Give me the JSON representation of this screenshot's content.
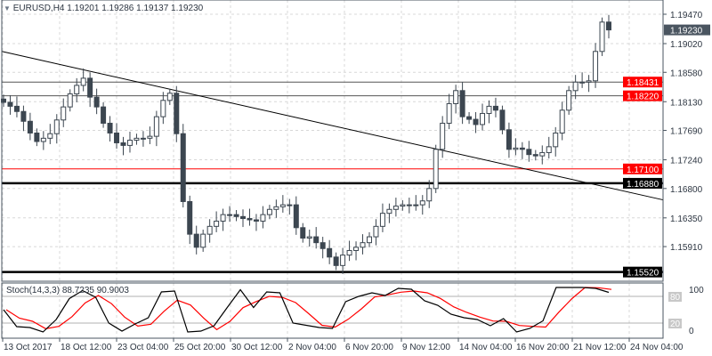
{
  "header": {
    "arrow_icon": "triangle-down-icon",
    "symbol": "EURUSD,H4",
    "ohlc": "1.19201 1.19286 1.19137 1.19230"
  },
  "indicator": {
    "label": "Stoch(14,3,3) 88.7235 90.9003",
    "levels": [
      "100",
      "80",
      "20",
      "0"
    ]
  },
  "chart_data": {
    "type": "candlestick",
    "title": "EURUSD,H4",
    "price_ticks": [
      "1.19470",
      "1.19020",
      "1.18580",
      "1.18130",
      "1.17690",
      "1.17240",
      "1.16800",
      "1.16350",
      "1.15910"
    ],
    "x_ticks": [
      "13 Oct 2017",
      "18 Oct 12:00",
      "23 Oct 04:00",
      "25 Oct 20:00",
      "30 Oct 12:00",
      "2 Nov 04:00",
      "6 Nov 20:00",
      "9 Nov 12:00",
      "14 Nov 04:00",
      "16 Nov 20:00",
      "21 Nov 12:00",
      "24 Nov 04:00"
    ],
    "ylim": [
      1.154,
      1.1965
    ],
    "current_price": "1.19230",
    "close": [
      1.1812,
      1.1806,
      1.1798,
      1.1783,
      1.1765,
      1.1752,
      1.1757,
      1.1764,
      1.1785,
      1.1805,
      1.1825,
      1.1838,
      1.1849,
      1.182,
      1.1805,
      1.178,
      1.1765,
      1.175,
      1.1746,
      1.1754,
      1.1757,
      1.1757,
      1.176,
      1.179,
      1.1815,
      1.1826,
      1.1764,
      1.166,
      1.161,
      1.159,
      1.161,
      1.1622,
      1.163,
      1.164,
      1.164,
      1.1637,
      1.1634,
      1.1632,
      1.163,
      1.164,
      1.1648,
      1.1652,
      1.1655,
      1.1655,
      1.162,
      1.1604,
      1.1606,
      1.1597,
      1.1588,
      1.1575,
      1.1562,
      1.1578,
      1.1585,
      1.159,
      1.1597,
      1.1606,
      1.1622,
      1.1642,
      1.1648,
      1.1653,
      1.1655,
      1.1655,
      1.1655,
      1.1661,
      1.168,
      1.174,
      1.178,
      1.181,
      1.183,
      1.179,
      1.1786,
      1.1778,
      1.1795,
      1.1806,
      1.18,
      1.177,
      1.174,
      1.1742,
      1.174,
      1.1732,
      1.173,
      1.1735,
      1.1744,
      1.1765,
      1.18,
      1.183,
      1.1843,
      1.1843,
      1.1845,
      1.189,
      1.1935,
      1.1923
    ],
    "hlines": [
      {
        "price": 1.18431,
        "label": "1.18431",
        "color": "#555555",
        "label_bg": "#ff0000",
        "width": 1
      },
      {
        "price": 1.1822,
        "label": "1.18220",
        "color": "#555555",
        "label_bg": "#ff0000",
        "width": 1
      },
      {
        "price": 1.171,
        "label": "1.17100",
        "color": "#ff0000",
        "label_bg": "#ff0000",
        "width": 1
      },
      {
        "price": 1.1688,
        "label": "1.16880",
        "color": "#000000",
        "label_bg": "#000000",
        "width": 2.5
      },
      {
        "price": 1.1552,
        "label": "1.15520",
        "color": "#000000",
        "label_bg": "#000000",
        "width": 2.5
      }
    ],
    "trendline": {
      "start_price": 1.189,
      "end_price": 1.1658,
      "color": "#000000"
    },
    "stochastic": {
      "k": [
        50,
        12,
        10,
        0,
        28,
        75,
        93,
        78,
        20,
        2,
        18,
        32,
        90,
        92,
        0,
        2,
        14,
        55,
        95,
        55,
        90,
        88,
        20,
        15,
        10,
        8,
        68,
        80,
        88,
        82,
        98,
        96,
        70,
        60,
        40,
        32,
        28,
        14,
        30,
        0,
        8,
        25,
        100,
        100,
        100,
        98,
        89
      ],
      "k_color": "#000000",
      "d_color": "#ff0000"
    },
    "colors": {
      "candle": "#3c4650",
      "grid": "#d8d8d8",
      "current_bg": "#4a5560"
    }
  }
}
